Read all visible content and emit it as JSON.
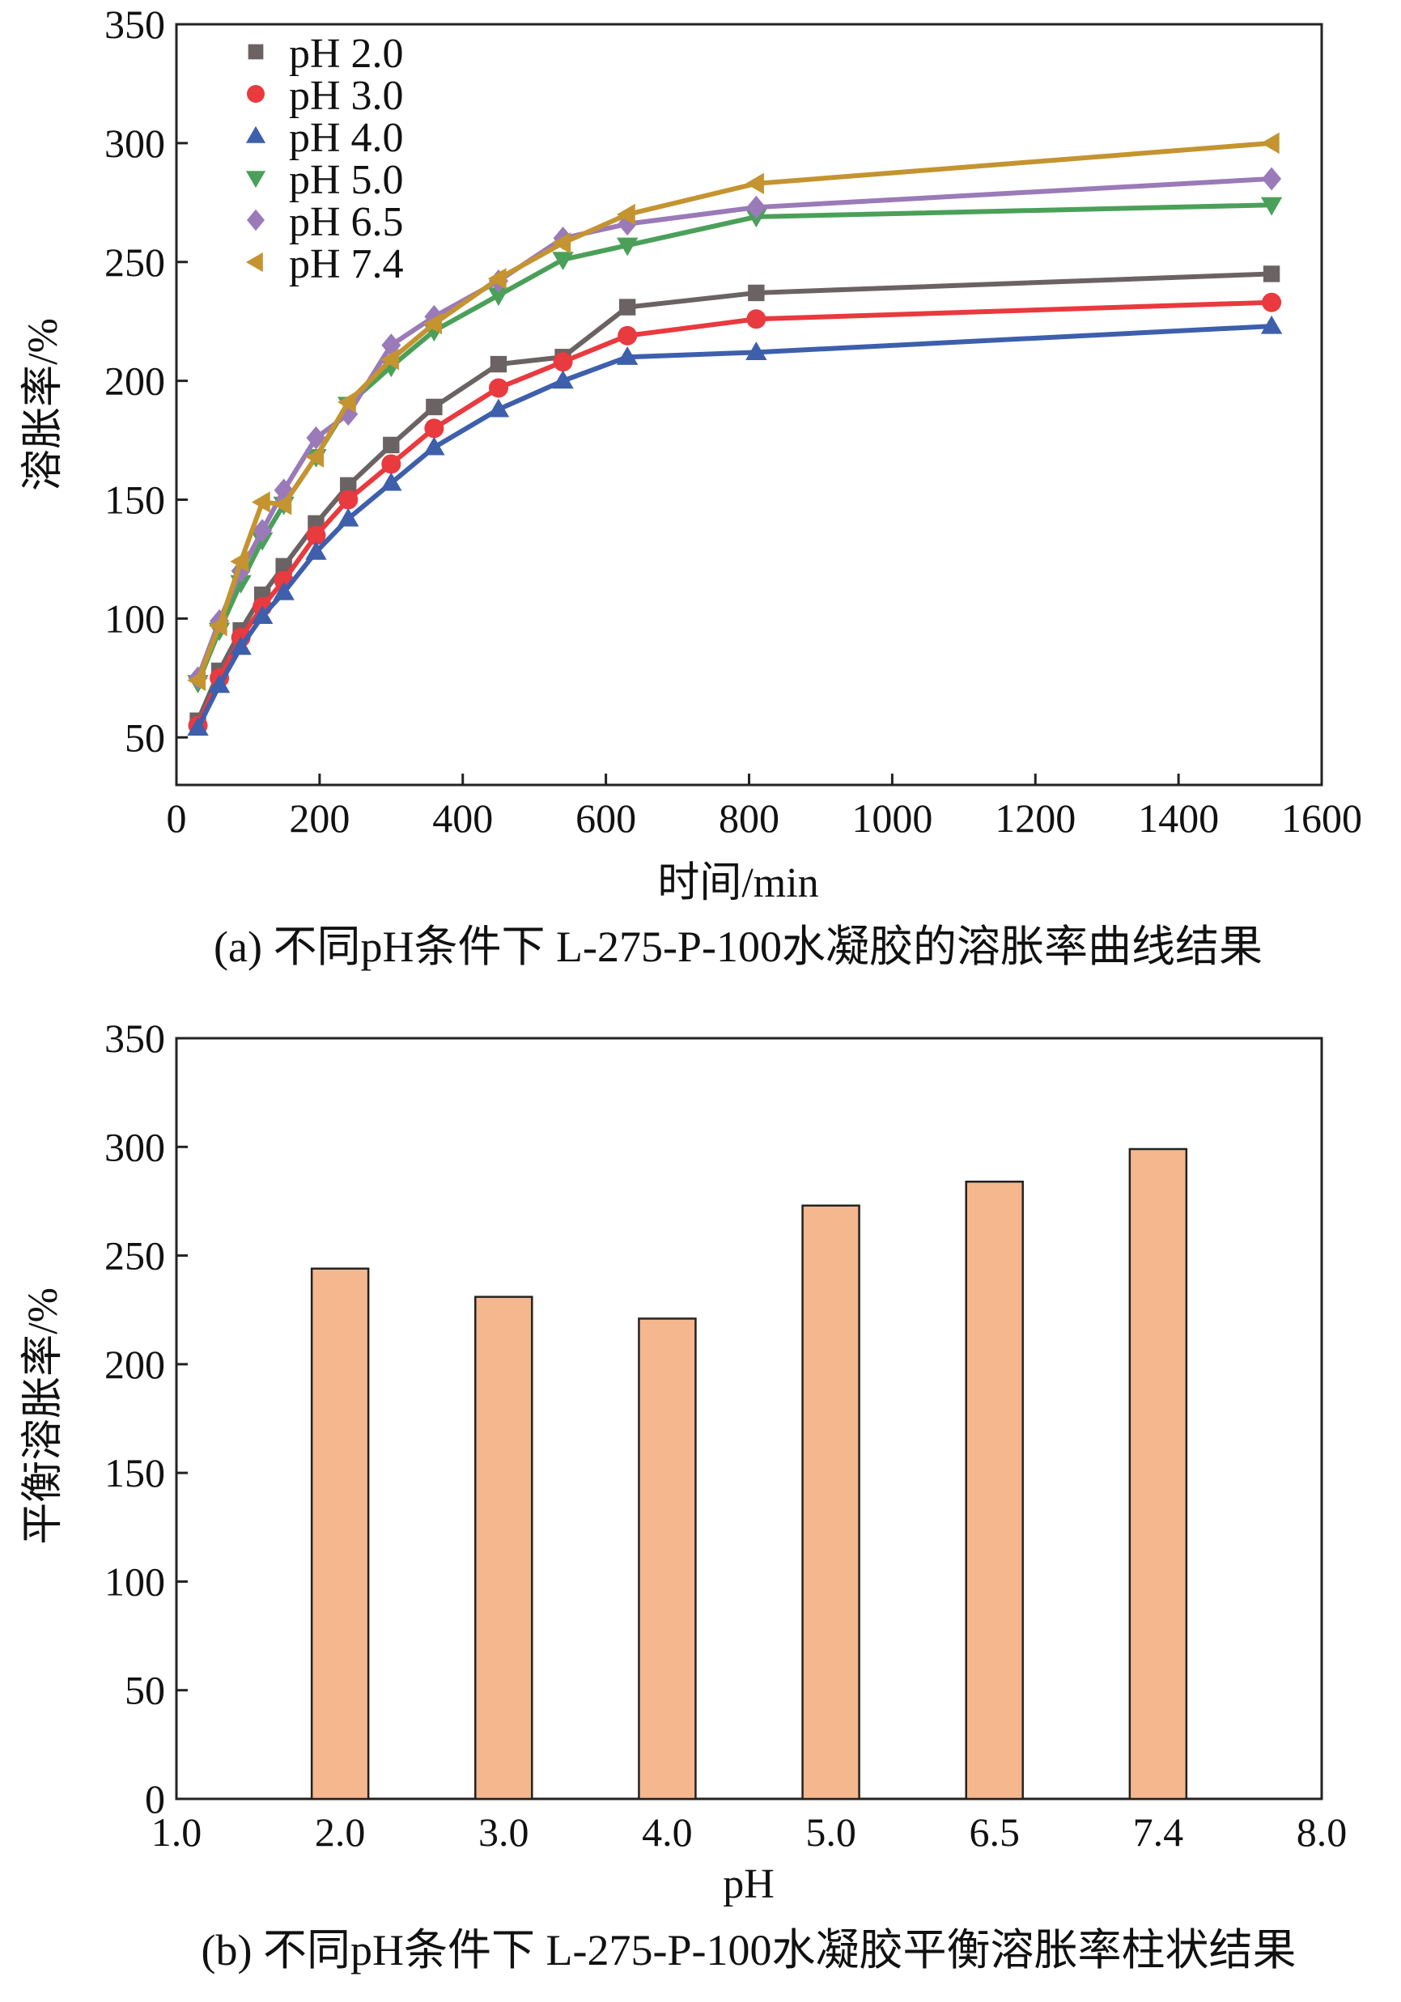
{
  "chart_data": [
    {
      "type": "line",
      "xlabel": "时间/min",
      "ylabel": "溶胀率/%",
      "caption": "(a) 不同pH条件下 L-275-P-100水凝胶的溶胀率曲线结果",
      "xlim": [
        0,
        1600
      ],
      "ylim": [
        30,
        350
      ],
      "xticks": [
        "0",
        "200",
        "400",
        "600",
        "800",
        "1000",
        "1200",
        "1400",
        "1600"
      ],
      "yticks": [
        "50",
        "100",
        "150",
        "200",
        "250",
        "300",
        "350"
      ],
      "grid": false,
      "legend_position": "top-left",
      "x": [
        30,
        60,
        90,
        120,
        150,
        195,
        240,
        300,
        360,
        450,
        540,
        630,
        810,
        1530
      ],
      "series": [
        {
          "name": "pH 2.0",
          "marker": "square",
          "color": "#6b6363",
          "values": [
            57,
            78,
            95,
            110,
            122,
            140,
            156,
            173,
            189,
            207,
            210,
            231,
            237,
            245
          ]
        },
        {
          "name": "pH 3.0",
          "marker": "circle",
          "color": "#e83a3f",
          "values": [
            55,
            75,
            92,
            105,
            116,
            135,
            150,
            165,
            180,
            197,
            208,
            219,
            226,
            233
          ]
        },
        {
          "name": "pH 4.0",
          "marker": "triangle-up",
          "color": "#3d5fac",
          "values": [
            54,
            72,
            88,
            101,
            111,
            128,
            142,
            157,
            172,
            188,
            200,
            210,
            212,
            223
          ]
        },
        {
          "name": "pH 5.0",
          "marker": "triangle-down",
          "color": "#4ba059",
          "values": [
            73,
            95,
            115,
            133,
            148,
            168,
            190,
            206,
            221,
            236,
            251,
            257,
            269,
            274
          ]
        },
        {
          "name": "pH 6.5",
          "marker": "diamond",
          "color": "#9a7ab8",
          "values": [
            75,
            99,
            120,
            137,
            154,
            176,
            186,
            215,
            227,
            242,
            260,
            266,
            273,
            285
          ]
        },
        {
          "name": "pH 7.4",
          "marker": "triangle-left",
          "color": "#c49431",
          "values": [
            74,
            97,
            124,
            149,
            148,
            168,
            191,
            209,
            224,
            243,
            258,
            270,
            283,
            300
          ]
        }
      ]
    },
    {
      "type": "bar",
      "xlabel": "pH",
      "ylabel": "平衡溶胀率/%",
      "caption": "(b) 不同pH条件下 L-275-P-100水凝胶平衡溶胀率柱状结果",
      "ylim": [
        0,
        350
      ],
      "xticks": [
        "1.0",
        "2.0",
        "3.0",
        "4.0",
        "5.0",
        "6.5",
        "7.4",
        "8.0"
      ],
      "yticks": [
        "0",
        "50",
        "100",
        "150",
        "200",
        "250",
        "300",
        "350"
      ],
      "categories": [
        "2.0",
        "3.0",
        "4.0",
        "5.0",
        "6.5",
        "7.4"
      ],
      "values": [
        244,
        231,
        221,
        273,
        284,
        299
      ],
      "bar_color": "#f5b78d",
      "grid": false
    }
  ]
}
